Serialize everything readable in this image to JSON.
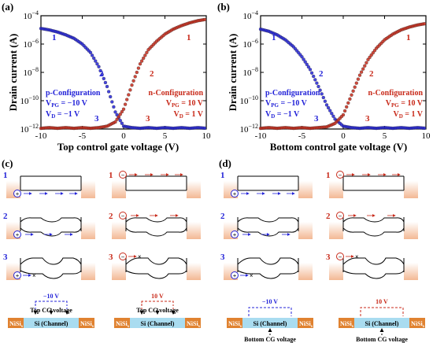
{
  "panel_labels": [
    "(a)",
    "(b)",
    "(c)",
    "(d)"
  ],
  "chart_data": [
    {
      "type": "scatter",
      "panel": "(a)",
      "xlabel": "Top control gate voltage (V)",
      "ylabel": "Drain current (A)",
      "xlim": [
        -10,
        10
      ],
      "ylim_log10": [
        -12,
        -4
      ],
      "xticks": [
        "-10",
        "-5",
        "0",
        "5",
        "10"
      ],
      "yticks": [
        "10^-12",
        "10^-10",
        "10^-8",
        "10^-6",
        "10^-4"
      ],
      "y_scale": "log",
      "series": [
        {
          "color": "#2323d8",
          "x": [
            -10,
            -9,
            -8,
            -7,
            -6,
            -5,
            -4,
            -3,
            -2,
            -1,
            0,
            1,
            2,
            3,
            4,
            5,
            6,
            7,
            8,
            9,
            10
          ],
          "log10_y": [
            -4.9,
            -5.0,
            -5.15,
            -5.35,
            -5.6,
            -6.0,
            -6.6,
            -7.6,
            -9.0,
            -10.8,
            -11.8,
            -11.9,
            -11.95,
            -11.9,
            -11.95,
            -11.9,
            -11.95,
            -11.9,
            -11.95,
            -11.9,
            -11.95
          ]
        },
        {
          "color": "#c82a1a",
          "x": [
            -10,
            -9,
            -8,
            -7,
            -6,
            -5,
            -4,
            -3,
            -2,
            -1,
            0,
            1,
            2,
            3,
            4,
            5,
            6,
            7,
            8,
            9,
            10
          ],
          "log10_y": [
            -11.95,
            -11.9,
            -11.95,
            -11.9,
            -11.95,
            -11.9,
            -11.95,
            -11.9,
            -11.8,
            -11.5,
            -10.6,
            -8.9,
            -7.4,
            -6.4,
            -5.8,
            -5.3,
            -4.95,
            -4.7,
            -4.5,
            -4.35,
            -4.25
          ]
        }
      ],
      "annotations": {
        "left_config": {
          "title": "p-Configuration",
          "vpg": "−10 V",
          "vd": "−1 V"
        },
        "right_config": {
          "title": "n-Configuration",
          "vpg": "10 V",
          "vd": "1 V"
        },
        "region_numbers": [
          "1",
          "2",
          "3",
          "1",
          "2",
          "3"
        ]
      }
    },
    {
      "type": "scatter",
      "panel": "(b)",
      "xlabel": "Bottom control gate voltage (V)",
      "ylabel": "Drain current (A)",
      "xlim": [
        -10,
        10
      ],
      "ylim_log10": [
        -12,
        -4
      ],
      "xticks": [
        "-10",
        "-5",
        "0",
        "5",
        "10"
      ],
      "yticks": [
        "10^-12",
        "10^-10",
        "10^-8",
        "10^-6",
        "10^-4"
      ],
      "y_scale": "log",
      "series": [
        {
          "color": "#2323d8",
          "x": [
            -10,
            -9,
            -8,
            -7,
            -6,
            -5,
            -4,
            -3,
            -2,
            -1,
            0,
            1,
            2,
            3,
            4,
            5,
            6,
            7,
            8,
            9,
            10
          ],
          "log10_y": [
            -4.95,
            -5.1,
            -5.35,
            -5.7,
            -6.2,
            -6.9,
            -7.8,
            -9.0,
            -10.3,
            -11.3,
            -11.8,
            -11.9,
            -11.95,
            -11.9,
            -11.95,
            -11.9,
            -11.95,
            -11.9,
            -11.95,
            -11.9,
            -11.95
          ]
        },
        {
          "color": "#c82a1a",
          "x": [
            -10,
            -9,
            -8,
            -7,
            -6,
            -5,
            -4,
            -3,
            -2,
            -1,
            0,
            1,
            2,
            3,
            4,
            5,
            6,
            7,
            8,
            9,
            10
          ],
          "log10_y": [
            -11.95,
            -11.9,
            -11.95,
            -11.9,
            -11.95,
            -11.9,
            -11.95,
            -11.9,
            -11.85,
            -11.6,
            -11.0,
            -9.6,
            -8.2,
            -7.1,
            -6.3,
            -5.7,
            -5.3,
            -5.0,
            -4.8,
            -4.65,
            -4.55
          ]
        }
      ],
      "annotations": {
        "left_config": {
          "title": "p-Configuration",
          "vpg": "−10 V",
          "vd": "−1 V"
        },
        "right_config": {
          "title": "n-Configuration",
          "vpg": "10 V",
          "vd": "1 V"
        },
        "region_numbers": [
          "1",
          "2",
          "3",
          "1",
          "2",
          "3"
        ]
      }
    }
  ],
  "text": {
    "vpg_prefix": "V",
    "vpg_sub": "PG",
    "vd_prefix": "V",
    "vd_sub": "D",
    "eq": " = ",
    "ten": "10",
    "neg10v": "−10 V",
    "pos10v": "10 V",
    "top_cg": "Top CG voltage",
    "bottom_cg": "Bottom CG voltage",
    "nisi_base": "NiSi",
    "nisi_sub": "x",
    "channel": "Si (Channel)",
    "row_nums": [
      "1",
      "2",
      "3"
    ],
    "plus": "+",
    "minus": "−"
  },
  "colors": {
    "blue": "#2323d8",
    "red": "#c82a1a",
    "nisi": "#e08230",
    "channel": "#a9dcf0",
    "band": "#f7cfb4"
  }
}
